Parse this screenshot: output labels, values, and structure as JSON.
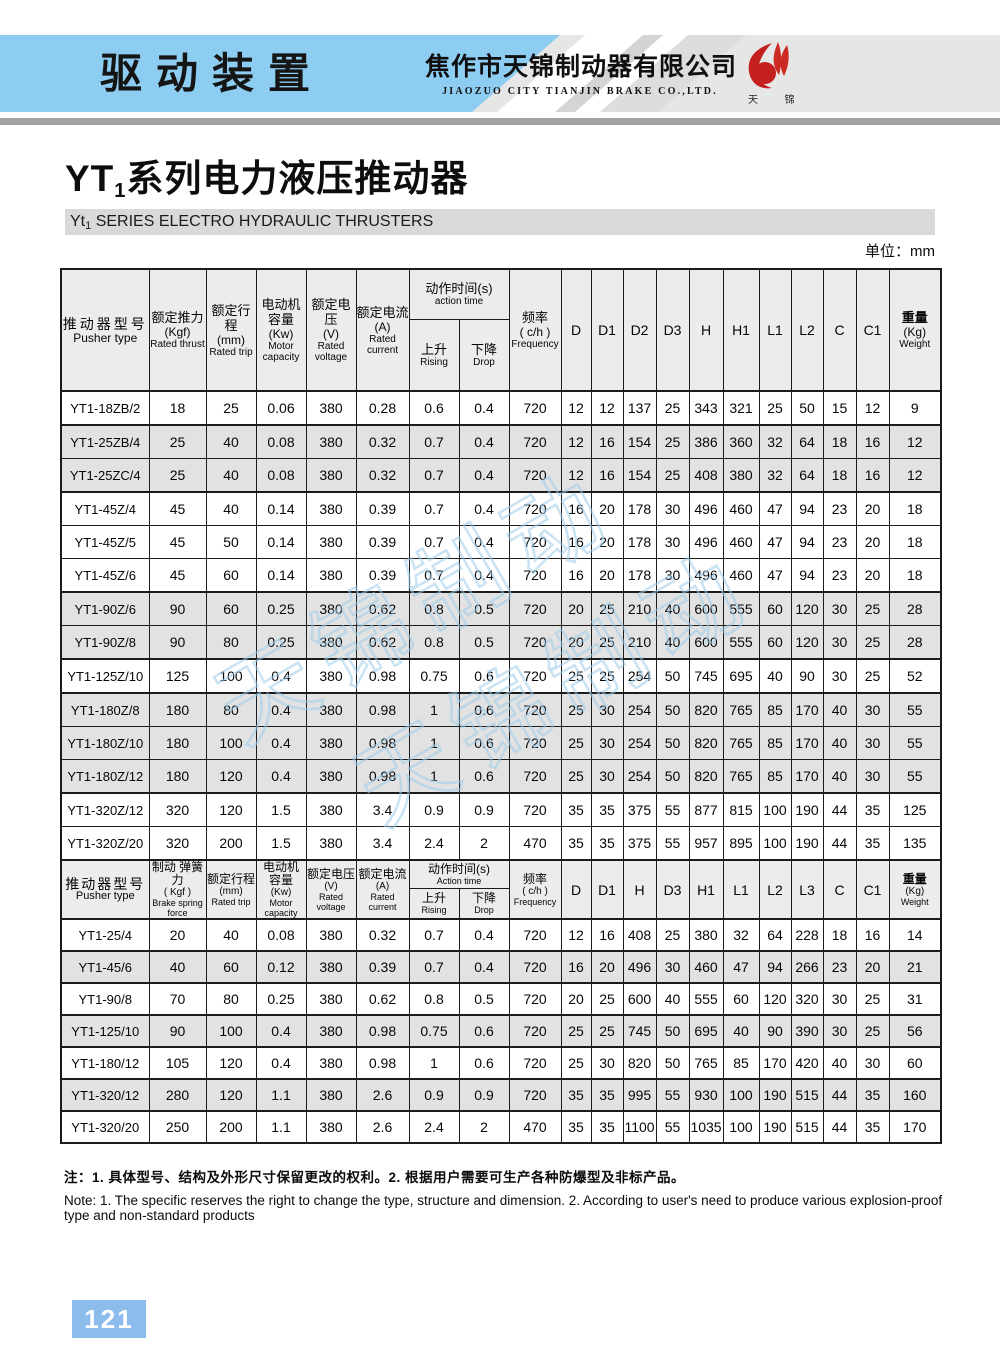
{
  "header": {
    "category": "驱动装置",
    "company_zh": "焦作市天锦制动器有限公司",
    "company_en": "JIAOZUO CITY TIANJIN BRAKE CO.,LTD.",
    "logo_caption": "天 锦"
  },
  "title": {
    "prefix": "YT",
    "sub": "1",
    "suffix": "系列电力液压推动器"
  },
  "subtitle": {
    "prefix": "Yt",
    "sub": "1",
    "suffix": " SERIES ELECTRO HYDRAULIC THRUSTERS"
  },
  "unit_label": "单位：mm",
  "watermark_text": "天锦制动",
  "table1": {
    "cols": {
      "model": {
        "zh": "推动器型号",
        "en": "Pusher type"
      },
      "c1": {
        "zh": "额定推力",
        "unit": "(Kgf)",
        "en": "Rated thrust"
      },
      "c2": {
        "zh": "额定行程",
        "unit": "(mm)",
        "en": "Rated trip"
      },
      "c3": {
        "zh": "电动机 容量",
        "unit": "(Kw)",
        "en": "Motor capacity"
      },
      "c4": {
        "zh": "额定电压",
        "unit": "(V)",
        "en": "Rated voltage"
      },
      "c5": {
        "zh": "额定电流",
        "unit": "(A)",
        "en": "Rated current"
      },
      "action": {
        "zh": "动作时间(s)",
        "en": "action time"
      },
      "rise": {
        "zh": "上升",
        "en": "Rising"
      },
      "drop": {
        "zh": "下降",
        "en": "Drop"
      },
      "freq": {
        "zh": "频率",
        "unit": "( c/h )",
        "en": "Frequency"
      },
      "d0": "D",
      "d1": "D1",
      "d2": "D2",
      "d3": "D3",
      "d4": "H",
      "d5": "H1",
      "d6": "L1",
      "d7": "L2",
      "d8": "C",
      "d9": "C1",
      "weight": {
        "zh": "重量",
        "unit": "(Kg)",
        "en": "Weight"
      }
    },
    "rows": [
      {
        "cells": [
          "YT1-18ZB/2",
          "18",
          "25",
          "0.06",
          "380",
          "0.28",
          "0.6",
          "0.4",
          "720",
          "12",
          "12",
          "137",
          "25",
          "343",
          "321",
          "25",
          "50",
          "15",
          "12",
          "9"
        ],
        "shaded": false,
        "group_start": true
      },
      {
        "cells": [
          "YT1-25ZB/4",
          "25",
          "40",
          "0.08",
          "380",
          "0.32",
          "0.7",
          "0.4",
          "720",
          "12",
          "16",
          "154",
          "25",
          "386",
          "360",
          "32",
          "64",
          "18",
          "16",
          "12"
        ],
        "shaded": true,
        "group_start": true
      },
      {
        "cells": [
          "YT1-25ZC/4",
          "25",
          "40",
          "0.08",
          "380",
          "0.32",
          "0.7",
          "0.4",
          "720",
          "12",
          "16",
          "154",
          "25",
          "408",
          "380",
          "32",
          "64",
          "18",
          "16",
          "12"
        ],
        "shaded": true,
        "group_start": false
      },
      {
        "cells": [
          "YT1-45Z/4",
          "45",
          "40",
          "0.14",
          "380",
          "0.39",
          "0.7",
          "0.4",
          "720",
          "16",
          "20",
          "178",
          "30",
          "496",
          "460",
          "47",
          "94",
          "23",
          "20",
          "18"
        ],
        "shaded": false,
        "group_start": true
      },
      {
        "cells": [
          "YT1-45Z/5",
          "45",
          "50",
          "0.14",
          "380",
          "0.39",
          "0.7",
          "0.4",
          "720",
          "16",
          "20",
          "178",
          "30",
          "496",
          "460",
          "47",
          "94",
          "23",
          "20",
          "18"
        ],
        "shaded": false,
        "group_start": false
      },
      {
        "cells": [
          "YT1-45Z/6",
          "45",
          "60",
          "0.14",
          "380",
          "0.39",
          "0.7",
          "0.4",
          "720",
          "16",
          "20",
          "178",
          "30",
          "496",
          "460",
          "47",
          "94",
          "23",
          "20",
          "18"
        ],
        "shaded": false,
        "group_start": false
      },
      {
        "cells": [
          "YT1-90Z/6",
          "90",
          "60",
          "0.25",
          "380",
          "0.62",
          "0.8",
          "0.5",
          "720",
          "20",
          "25",
          "210",
          "40",
          "600",
          "555",
          "60",
          "120",
          "30",
          "25",
          "28"
        ],
        "shaded": true,
        "group_start": true
      },
      {
        "cells": [
          "YT1-90Z/8",
          "90",
          "80",
          "0.25",
          "380",
          "0.62",
          "0.8",
          "0.5",
          "720",
          "20",
          "25",
          "210",
          "40",
          "600",
          "555",
          "60",
          "120",
          "30",
          "25",
          "28"
        ],
        "shaded": true,
        "group_start": false
      },
      {
        "cells": [
          "YT1-125Z/10",
          "125",
          "100",
          "0.4",
          "380",
          "0.98",
          "0.75",
          "0.6",
          "720",
          "25",
          "25",
          "254",
          "50",
          "745",
          "695",
          "40",
          "90",
          "30",
          "25",
          "52"
        ],
        "shaded": false,
        "group_start": true
      },
      {
        "cells": [
          "YT1-180Z/8",
          "180",
          "80",
          "0.4",
          "380",
          "0.98",
          "1",
          "0.6",
          "720",
          "25",
          "30",
          "254",
          "50",
          "820",
          "765",
          "85",
          "170",
          "40",
          "30",
          "55"
        ],
        "shaded": true,
        "group_start": true
      },
      {
        "cells": [
          "YT1-180Z/10",
          "180",
          "100",
          "0.4",
          "380",
          "0.98",
          "1",
          "0.6",
          "720",
          "25",
          "30",
          "254",
          "50",
          "820",
          "765",
          "85",
          "170",
          "40",
          "30",
          "55"
        ],
        "shaded": true,
        "group_start": false
      },
      {
        "cells": [
          "YT1-180Z/12",
          "180",
          "120",
          "0.4",
          "380",
          "0.98",
          "1",
          "0.6",
          "720",
          "25",
          "30",
          "254",
          "50",
          "820",
          "765",
          "85",
          "170",
          "40",
          "30",
          "55"
        ],
        "shaded": true,
        "group_start": false
      },
      {
        "cells": [
          "YT1-320Z/12",
          "320",
          "120",
          "1.5",
          "380",
          "3.4",
          "0.9",
          "0.9",
          "720",
          "35",
          "35",
          "375",
          "55",
          "877",
          "815",
          "100",
          "190",
          "44",
          "35",
          "125"
        ],
        "shaded": false,
        "group_start": true
      },
      {
        "cells": [
          "YT1-320Z/20",
          "320",
          "200",
          "1.5",
          "380",
          "3.4",
          "2.4",
          "2",
          "470",
          "35",
          "35",
          "375",
          "55",
          "957",
          "895",
          "100",
          "190",
          "44",
          "35",
          "135"
        ],
        "shaded": false,
        "group_start": false
      }
    ]
  },
  "table2": {
    "cols": {
      "model": {
        "zh": "推动器型号",
        "en": "Pusher type"
      },
      "c1": {
        "zh": "制动 弹簧力",
        "unit": "( Kgf )",
        "en": "Brake spring force"
      },
      "c2": {
        "zh": "额定行程",
        "unit": "(mm)",
        "en": "Rated trip"
      },
      "c3": {
        "zh": "电动机 容量",
        "unit": "(Kw)",
        "en": "Motor capacity"
      },
      "c4": {
        "zh": "额定电压",
        "unit": "(V)",
        "en": "Rated voltage"
      },
      "c5": {
        "zh": "额定电流",
        "unit": "(A)",
        "en": "Rated current"
      },
      "action": {
        "zh": "动作时间(s)",
        "en": "Action time"
      },
      "rise": {
        "zh": "上升",
        "en": "Rising"
      },
      "drop": {
        "zh": "下降",
        "en": "Drop"
      },
      "freq": {
        "zh": "频率",
        "unit": "( c/h )",
        "en": "Frequency"
      },
      "d0": "D",
      "d1": "D1",
      "d2": "H",
      "d3": "D3",
      "d4": "H1",
      "d5": "L1",
      "d6": "L2",
      "d7": "L3",
      "d8": "C",
      "d9": "C1",
      "weight": {
        "zh": "重量",
        "unit": "(Kg)",
        "en": "Weight"
      }
    },
    "rows": [
      {
        "cells": [
          "YT1-25/4",
          "20",
          "40",
          "0.08",
          "380",
          "0.32",
          "0.7",
          "0.4",
          "720",
          "12",
          "16",
          "408",
          "25",
          "380",
          "32",
          "64",
          "228",
          "18",
          "16",
          "14"
        ],
        "shaded": false,
        "group_start": true
      },
      {
        "cells": [
          "YT1-45/6",
          "40",
          "60",
          "0.12",
          "380",
          "0.39",
          "0.7",
          "0.4",
          "720",
          "16",
          "20",
          "496",
          "30",
          "460",
          "47",
          "94",
          "266",
          "23",
          "20",
          "21"
        ],
        "shaded": true,
        "group_start": true
      },
      {
        "cells": [
          "YT1-90/8",
          "70",
          "80",
          "0.25",
          "380",
          "0.62",
          "0.8",
          "0.5",
          "720",
          "20",
          "25",
          "600",
          "40",
          "555",
          "60",
          "120",
          "320",
          "30",
          "25",
          "31"
        ],
        "shaded": false,
        "group_start": true
      },
      {
        "cells": [
          "YT1-125/10",
          "90",
          "100",
          "0.4",
          "380",
          "0.98",
          "0.75",
          "0.6",
          "720",
          "25",
          "25",
          "745",
          "50",
          "695",
          "40",
          "90",
          "390",
          "30",
          "25",
          "56"
        ],
        "shaded": true,
        "group_start": true
      },
      {
        "cells": [
          "YT1-180/12",
          "105",
          "120",
          "0.4",
          "380",
          "0.98",
          "1",
          "0.6",
          "720",
          "25",
          "30",
          "820",
          "50",
          "765",
          "85",
          "170",
          "420",
          "40",
          "30",
          "60"
        ],
        "shaded": false,
        "group_start": true
      },
      {
        "cells": [
          "YT1-320/12",
          "280",
          "120",
          "1.1",
          "380",
          "2.6",
          "0.9",
          "0.9",
          "720",
          "35",
          "35",
          "995",
          "55",
          "930",
          "100",
          "190",
          "515",
          "44",
          "35",
          "160"
        ],
        "shaded": true,
        "group_start": true
      },
      {
        "cells": [
          "YT1-320/20",
          "250",
          "200",
          "1.1",
          "380",
          "2.6",
          "2.4",
          "2",
          "470",
          "35",
          "35",
          "1100",
          "55",
          "1035",
          "100",
          "190",
          "515",
          "44",
          "35",
          "170"
        ],
        "shaded": false,
        "group_start": true
      }
    ]
  },
  "notes": {
    "zh": "注：1. 具体型号、结构及外形尺寸保留更改的权利。2. 根据用户需要可生产各种防爆型及非标产品。",
    "en": "Note: 1. The specific reserves the right to change the type, structure and dimension. 2. According to user's need to produce various explosion-proof type and non-standard products"
  },
  "page_number": "121",
  "colors": {
    "ribbon_blue": "#8ecdf2",
    "band_gray": "#e6e6e6",
    "shade_gray": "#e2e2e2",
    "logo_red": "#c42020",
    "page_num_blue": "#8cbcec"
  }
}
